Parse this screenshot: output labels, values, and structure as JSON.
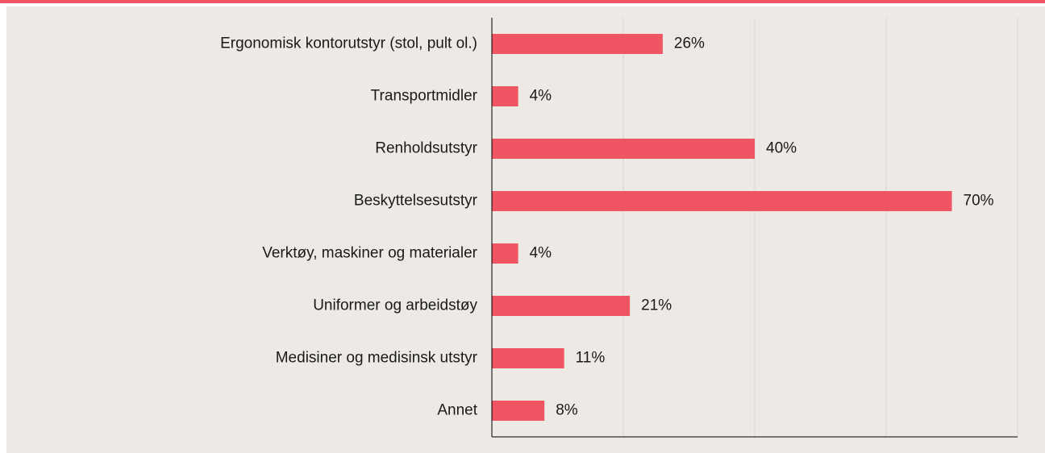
{
  "chart_data": {
    "type": "bar",
    "orientation": "horizontal",
    "categories": [
      "Ergonomisk kontorutstyr (stol, pult ol.)",
      "Transportmidler",
      "Renholdsutstyr",
      "Beskyttelsesutstyr",
      "Verktøy, maskiner og materialer",
      "Uniformer og arbeidstøy",
      "Medisiner og medisinsk utstyr",
      "Annet"
    ],
    "values": [
      26,
      4,
      40,
      70,
      4,
      21,
      11,
      8
    ],
    "value_labels": [
      "26%",
      "4%",
      "40%",
      "70%",
      "4%",
      "21%",
      "11%",
      "8%"
    ],
    "color": "#f05563",
    "xlim": [
      0,
      80
    ],
    "xticks": [
      20,
      40,
      60,
      80
    ],
    "grid": true
  }
}
